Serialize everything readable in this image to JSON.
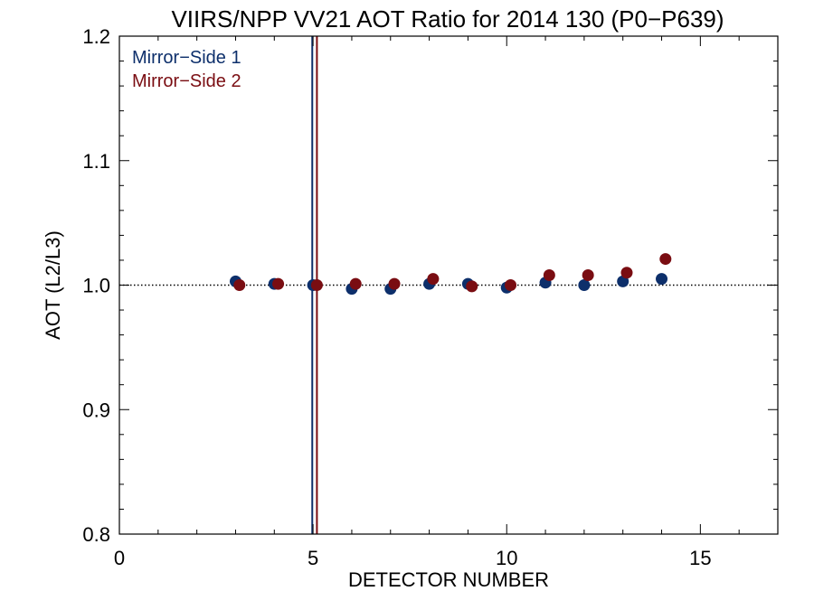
{
  "chart_data": {
    "type": "scatter",
    "title": "VIIRS/NPP VV21 AOT Ratio for 2014 130 (P0−P639)",
    "xlabel": "DETECTOR NUMBER",
    "ylabel": "AOT (L2/L3)",
    "xlim": [
      0,
      17
    ],
    "ylim": [
      0.8,
      1.2
    ],
    "x_ticks": [
      0,
      5,
      10,
      15
    ],
    "x_tick_labels": [
      "0",
      "5",
      "10",
      "15"
    ],
    "y_ticks": [
      0.8,
      0.9,
      1.0,
      1.1,
      1.2
    ],
    "y_tick_labels": [
      "0.8",
      "0.9",
      "1.0",
      "1.1",
      "1.2"
    ],
    "reference_line_y": 1.0,
    "legend_position": "top-left",
    "series": [
      {
        "name": "Mirror−Side 1",
        "color": "#0d2f6b",
        "x": [
          3,
          4,
          5,
          6,
          7,
          8,
          9,
          10,
          11,
          12,
          13,
          14
        ],
        "y": [
          1.003,
          1.001,
          1.0,
          0.997,
          0.997,
          1.001,
          1.001,
          0.998,
          1.002,
          1.0,
          1.003,
          1.005
        ]
      },
      {
        "name": "Mirror−Side 2",
        "color": "#7a0d12",
        "x": [
          3.1,
          4.1,
          5.1,
          6.1,
          7.1,
          8.1,
          9.1,
          10.1,
          11.1,
          12.1,
          13.1,
          14.1
        ],
        "y": [
          1.0,
          1.001,
          1.0,
          1.001,
          1.001,
          1.005,
          0.999,
          1.0,
          1.008,
          1.008,
          1.01,
          1.021
        ]
      }
    ],
    "vertical_lines": [
      {
        "x": 4.98,
        "color": "#0d2f6b"
      },
      {
        "x": 5.1,
        "color": "#7a0d12"
      }
    ]
  }
}
